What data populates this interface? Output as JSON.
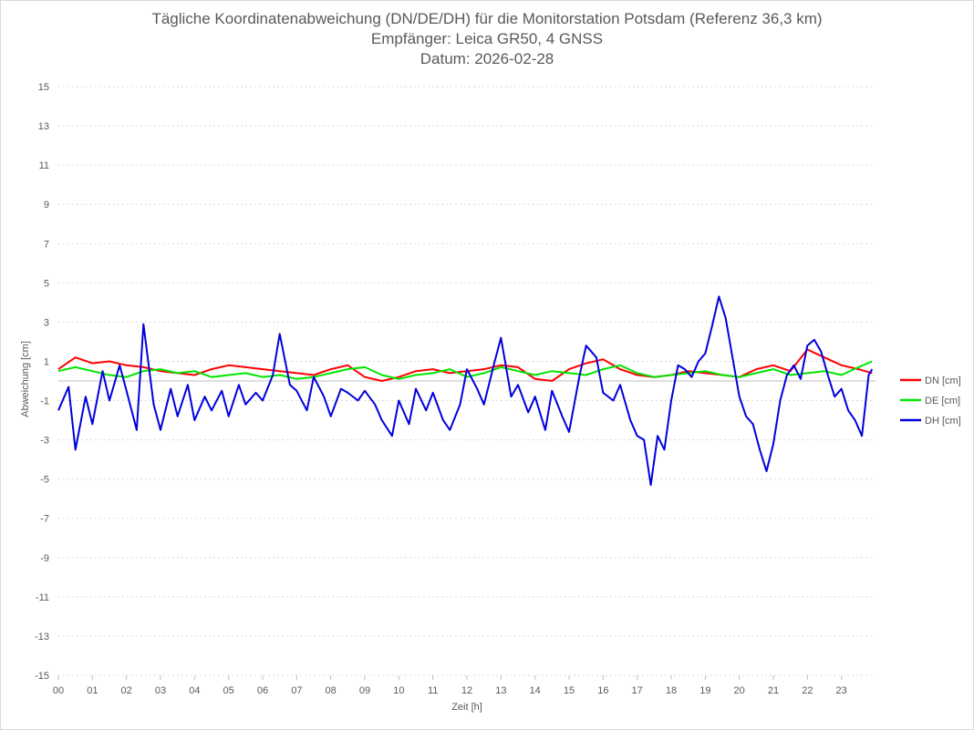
{
  "chart_data": {
    "type": "line",
    "title": [
      "Tägliche Koordinatenabweichung (DN/DE/DH) für die Monitorstation Potsdam (Referenz 36,3 km)",
      "Empfänger: Leica GR50, 4 GNSS",
      "Datum: 2026-02-28"
    ],
    "xlabel": "Zeit [h]",
    "ylabel": "Abweichung [cm]",
    "xlim": [
      0,
      24
    ],
    "ylim": [
      -15,
      15
    ],
    "x_ticks": [
      0,
      1,
      2,
      3,
      4,
      5,
      6,
      7,
      8,
      9,
      10,
      11,
      12,
      13,
      14,
      15,
      16,
      17,
      18,
      19,
      20,
      21,
      22,
      23
    ],
    "x_tick_labels": [
      "00",
      "01",
      "02",
      "03",
      "04",
      "05",
      "06",
      "07",
      "08",
      "09",
      "10",
      "11",
      "12",
      "13",
      "14",
      "15",
      "16",
      "17",
      "18",
      "19",
      "20",
      "21",
      "22",
      "23"
    ],
    "y_ticks": [
      15,
      13,
      11,
      9,
      7,
      5,
      3,
      1,
      -1,
      -3,
      -5,
      -7,
      -9,
      -11,
      -13,
      -15
    ],
    "y_tick_labels": [
      "15",
      "13",
      "11",
      "9",
      "7",
      "5",
      "3",
      "1",
      "-1",
      "-3",
      "-5",
      "-7",
      "-9",
      "-11",
      "-13",
      "-15"
    ],
    "grid": "horizontal dotted",
    "legend_position": "right",
    "series": [
      {
        "name": "DN [cm]",
        "color": "#ff0000",
        "x": [
          0,
          0.5,
          1,
          1.5,
          2,
          2.5,
          3,
          3.5,
          4,
          4.5,
          5,
          5.5,
          6,
          6.5,
          7,
          7.5,
          8,
          8.5,
          9,
          9.5,
          10,
          10.5,
          11,
          11.5,
          12,
          12.5,
          13,
          13.5,
          14,
          14.5,
          15,
          15.5,
          16,
          16.5,
          17,
          17.5,
          18,
          18.5,
          19,
          19.5,
          20,
          20.5,
          21,
          21.5,
          22,
          22.5,
          23,
          23.5,
          23.9
        ],
        "y": [
          0.6,
          1.2,
          0.9,
          1.0,
          0.8,
          0.7,
          0.5,
          0.4,
          0.3,
          0.6,
          0.8,
          0.7,
          0.6,
          0.5,
          0.4,
          0.3,
          0.6,
          0.8,
          0.2,
          0.0,
          0.2,
          0.5,
          0.6,
          0.4,
          0.5,
          0.6,
          0.8,
          0.7,
          0.1,
          0.0,
          0.6,
          0.9,
          1.1,
          0.6,
          0.3,
          0.2,
          0.3,
          0.5,
          0.4,
          0.3,
          0.2,
          0.6,
          0.8,
          0.5,
          1.6,
          1.2,
          0.8,
          0.6,
          0.4
        ]
      },
      {
        "name": "DE [cm]",
        "color": "#00e600",
        "x": [
          0,
          0.5,
          1,
          1.5,
          2,
          2.5,
          3,
          3.5,
          4,
          4.5,
          5,
          5.5,
          6,
          6.5,
          7,
          7.5,
          8,
          8.5,
          9,
          9.5,
          10,
          10.5,
          11,
          11.5,
          12,
          12.5,
          13,
          13.5,
          14,
          14.5,
          15,
          15.5,
          16,
          16.5,
          17,
          17.5,
          18,
          18.5,
          19,
          19.5,
          20,
          20.5,
          21,
          21.5,
          22,
          22.5,
          23,
          23.5,
          23.9
        ],
        "y": [
          0.5,
          0.7,
          0.5,
          0.3,
          0.2,
          0.5,
          0.6,
          0.4,
          0.5,
          0.2,
          0.3,
          0.4,
          0.2,
          0.3,
          0.1,
          0.2,
          0.4,
          0.6,
          0.7,
          0.3,
          0.1,
          0.3,
          0.4,
          0.6,
          0.2,
          0.4,
          0.7,
          0.5,
          0.3,
          0.5,
          0.4,
          0.3,
          0.6,
          0.8,
          0.4,
          0.2,
          0.3,
          0.4,
          0.5,
          0.3,
          0.2,
          0.4,
          0.6,
          0.3,
          0.4,
          0.5,
          0.3,
          0.7,
          1.0
        ]
      },
      {
        "name": "DH [cm]",
        "color": "#0000dd",
        "x": [
          0,
          0.3,
          0.5,
          0.8,
          1,
          1.3,
          1.5,
          1.8,
          2,
          2.3,
          2.5,
          2.8,
          3,
          3.3,
          3.5,
          3.8,
          4,
          4.3,
          4.5,
          4.8,
          5,
          5.3,
          5.5,
          5.8,
          6,
          6.3,
          6.5,
          6.8,
          7,
          7.3,
          7.5,
          7.8,
          8,
          8.3,
          8.5,
          8.8,
          9,
          9.3,
          9.5,
          9.8,
          10,
          10.3,
          10.5,
          10.8,
          11,
          11.3,
          11.5,
          11.8,
          12,
          12.3,
          12.5,
          12.8,
          13,
          13.3,
          13.5,
          13.8,
          14,
          14.3,
          14.5,
          14.8,
          15,
          15.3,
          15.5,
          15.8,
          16,
          16.3,
          16.5,
          16.8,
          17,
          17.2,
          17.4,
          17.6,
          17.8,
          18,
          18.2,
          18.4,
          18.6,
          18.8,
          19,
          19.2,
          19.4,
          19.6,
          19.8,
          20,
          20.2,
          20.4,
          20.6,
          20.8,
          21,
          21.2,
          21.4,
          21.6,
          21.8,
          22,
          22.2,
          22.4,
          22.6,
          22.8,
          23,
          23.2,
          23.4,
          23.6,
          23.8,
          23.9
        ],
        "y": [
          -1.5,
          -0.3,
          -3.5,
          -0.8,
          -2.2,
          0.5,
          -1.0,
          0.8,
          -0.5,
          -2.5,
          2.9,
          -1.2,
          -2.5,
          -0.4,
          -1.8,
          -0.2,
          -2.0,
          -0.8,
          -1.5,
          -0.5,
          -1.8,
          -0.2,
          -1.2,
          -0.6,
          -1.0,
          0.3,
          2.4,
          -0.2,
          -0.5,
          -1.5,
          0.2,
          -0.8,
          -1.8,
          -0.4,
          -0.6,
          -1.0,
          -0.5,
          -1.2,
          -2.0,
          -2.8,
          -1.0,
          -2.2,
          -0.4,
          -1.5,
          -0.6,
          -2.0,
          -2.5,
          -1.2,
          0.6,
          -0.4,
          -1.2,
          0.9,
          2.2,
          -0.8,
          -0.2,
          -1.6,
          -0.8,
          -2.5,
          -0.5,
          -1.8,
          -2.6,
          0.2,
          1.8,
          1.2,
          -0.6,
          -1.0,
          -0.2,
          -2.0,
          -2.8,
          -3.0,
          -5.3,
          -2.8,
          -3.5,
          -1.0,
          0.8,
          0.6,
          0.2,
          1.0,
          1.4,
          2.8,
          4.3,
          3.2,
          1.2,
          -0.8,
          -1.8,
          -2.2,
          -3.5,
          -4.6,
          -3.2,
          -1.0,
          0.3,
          0.8,
          0.1,
          1.8,
          2.1,
          1.5,
          0.3,
          -0.8,
          -0.4,
          -1.5,
          -2.0,
          -2.8,
          0.3,
          0.6
        ]
      }
    ]
  }
}
